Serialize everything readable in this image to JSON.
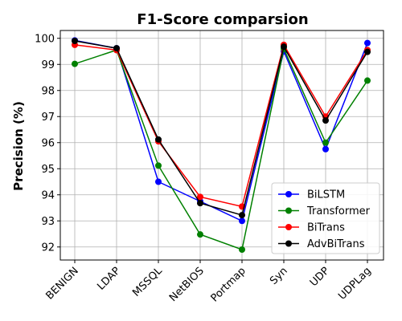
{
  "chart_data": {
    "type": "line",
    "title": "F1-Score comparsion",
    "xlabel": "",
    "ylabel": "Precision (%)",
    "categories": [
      "BENIGN",
      "LDAP",
      "MSSQL",
      "NetBIOS",
      "Portmap",
      "Syn",
      "UDP",
      "UDPLag"
    ],
    "ylim": [
      91.5,
      100.3
    ],
    "yticks": [
      92,
      93,
      94,
      95,
      96,
      97,
      98,
      99,
      100
    ],
    "grid": true,
    "legend_position": "lower-right",
    "series": [
      {
        "name": "BiLSTM",
        "color": "#0000ff",
        "values": [
          99.92,
          99.62,
          94.5,
          93.75,
          93.0,
          99.5,
          95.75,
          99.82
        ]
      },
      {
        "name": "Transformer",
        "color": "#008000",
        "values": [
          99.02,
          99.55,
          95.12,
          92.48,
          91.9,
          99.6,
          96.0,
          98.38
        ]
      },
      {
        "name": "BiTrans",
        "color": "#ff0000",
        "values": [
          99.75,
          99.55,
          96.05,
          93.92,
          93.55,
          99.75,
          97.0,
          99.55
        ]
      },
      {
        "name": "AdvBiTrans",
        "color": "#000000",
        "values": [
          99.9,
          99.62,
          96.12,
          93.68,
          93.22,
          99.68,
          96.85,
          99.48
        ]
      }
    ]
  }
}
